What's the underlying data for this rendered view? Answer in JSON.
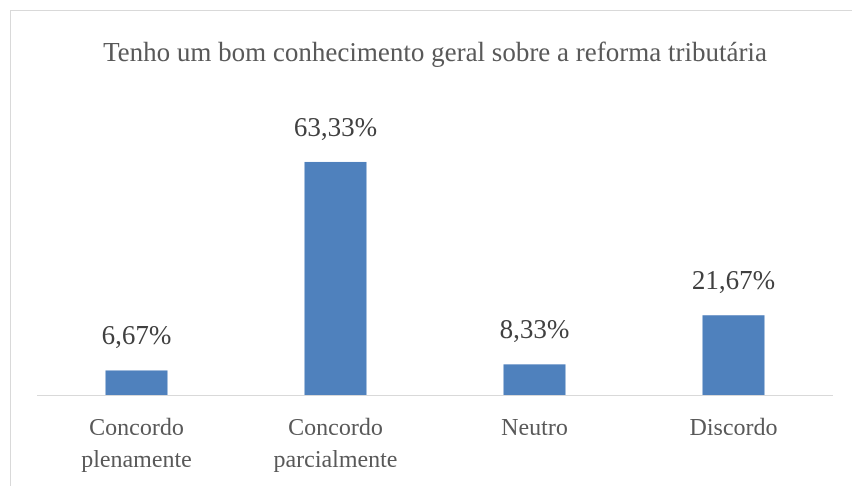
{
  "chart_data": {
    "type": "bar",
    "title": "Tenho um bom conhecimento geral sobre a reforma tributária",
    "categories": [
      "Concordo plenamente",
      "Concordo parcialmente",
      "Neutro",
      "Discordo"
    ],
    "values": [
      6.67,
      63.33,
      8.33,
      21.67
    ],
    "value_labels": [
      "6,67%",
      "63,33%",
      "8,33%",
      "21,67%"
    ],
    "color": "#4f81bd"
  }
}
